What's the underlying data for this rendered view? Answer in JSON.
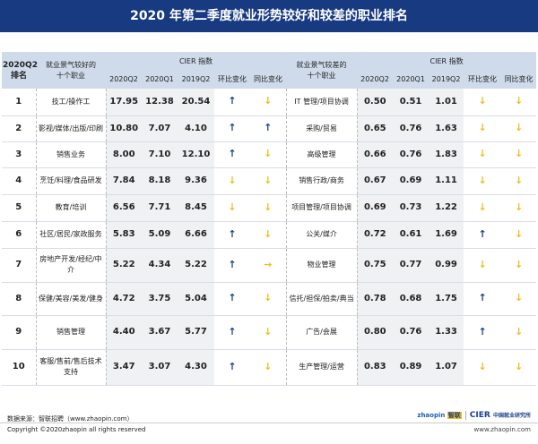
{
  "title": "2020 年第二季度就业形势较好和较差的职业排名",
  "header": {
    "rank": "2020Q2\n排名",
    "good_jobs": "就业景气较好的\n十个职业",
    "bad_jobs": "就业景气较差的\n十个职业",
    "cier": "CIER 指数",
    "q2020_2": "2020Q2",
    "q2020_1": "2020Q1",
    "q2019_2": "2019Q2",
    "qoq": "环比变化",
    "yoy": "同比变化"
  },
  "colors": {
    "title_bg": "#173a80",
    "header_bg": "#cfdbea",
    "up": "#1b3f8f",
    "down": "#f0bc1c"
  },
  "rows": [
    {
      "rank": "1",
      "good": "技工/操作工",
      "g": [
        "17.95",
        "12.38",
        "20.54"
      ],
      "gq": "up",
      "gy": "down",
      "bad": "IT 管理/项目协调",
      "b": [
        "0.50",
        "0.51",
        "1.01"
      ],
      "bq": "down",
      "by": "down"
    },
    {
      "rank": "2",
      "good": "影视/媒体/出版/印刷",
      "g": [
        "10.80",
        "7.07",
        "4.10"
      ],
      "gq": "up",
      "gy": "up",
      "bad": "采购/贸易",
      "b": [
        "0.65",
        "0.76",
        "1.63"
      ],
      "bq": "down",
      "by": "down"
    },
    {
      "rank": "3",
      "good": "销售业务",
      "g": [
        "8.00",
        "7.10",
        "12.10"
      ],
      "gq": "up",
      "gy": "down",
      "bad": "高级管理",
      "b": [
        "0.66",
        "0.76",
        "1.83"
      ],
      "bq": "down",
      "by": "down"
    },
    {
      "rank": "4",
      "good": "烹饪/料理/食品研发",
      "g": [
        "7.84",
        "8.18",
        "9.36"
      ],
      "gq": "down",
      "gy": "down",
      "bad": "销售行政/商务",
      "b": [
        "0.67",
        "0.69",
        "1.11"
      ],
      "bq": "down",
      "by": "down"
    },
    {
      "rank": "5",
      "good": "教育/培训",
      "g": [
        "6.56",
        "7.71",
        "8.45"
      ],
      "gq": "down",
      "gy": "down",
      "bad": "项目管理/项目协调",
      "b": [
        "0.69",
        "0.73",
        "1.22"
      ],
      "bq": "down",
      "by": "down"
    },
    {
      "rank": "6",
      "good": "社区/居民/家政服务",
      "g": [
        "5.83",
        "5.09",
        "6.66"
      ],
      "gq": "up",
      "gy": "down",
      "bad": "公关/媒介",
      "b": [
        "0.72",
        "0.61",
        "1.69"
      ],
      "bq": "up",
      "by": "down"
    },
    {
      "rank": "7",
      "good": "房地产开发/经纪/中介",
      "g": [
        "5.22",
        "4.34",
        "5.22"
      ],
      "gq": "up",
      "gy": "flat",
      "bad": "物业管理",
      "b": [
        "0.75",
        "0.77",
        "0.99"
      ],
      "bq": "down",
      "by": "down"
    },
    {
      "rank": "8",
      "good": "保健/美容/美发/健身",
      "g": [
        "4.72",
        "3.75",
        "5.04"
      ],
      "gq": "up",
      "gy": "down",
      "bad": "信托/担保/拍卖/典当",
      "b": [
        "0.78",
        "0.68",
        "1.75"
      ],
      "bq": "up",
      "by": "down"
    },
    {
      "rank": "9",
      "good": "销售管理",
      "g": [
        "4.40",
        "3.67",
        "5.77"
      ],
      "gq": "up",
      "gy": "down",
      "bad": "广告/会展",
      "b": [
        "0.80",
        "0.76",
        "1.33"
      ],
      "bq": "up",
      "by": "down"
    },
    {
      "rank": "10",
      "good": "客服/售前/售后技术支持",
      "g": [
        "3.47",
        "3.07",
        "4.30"
      ],
      "gq": "up",
      "gy": "down",
      "bad": "生产管理/运营",
      "b": [
        "0.83",
        "0.89",
        "1.07"
      ],
      "bq": "down",
      "by": "down"
    }
  ],
  "footer": {
    "source": "数据来源：智联招聘（www.zhaopin.com）",
    "copyright": "Copyright ©2020zhaopin all rights reserved",
    "site": "www.zhaopin.com",
    "logo_zhaopin": "zhaopin 智联招聘",
    "logo_cier": "CIER",
    "logo_cier_cn": "中国就业研究所"
  }
}
